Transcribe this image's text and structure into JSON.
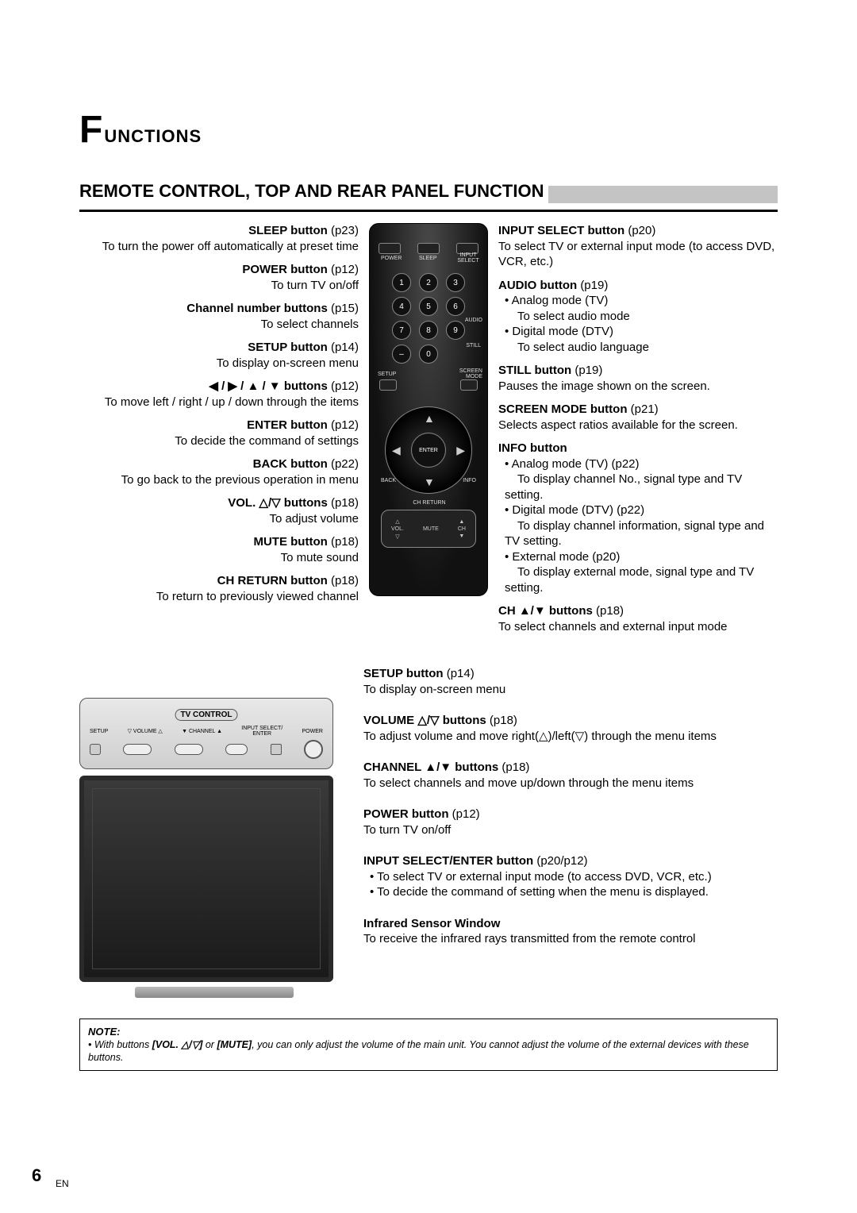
{
  "title": {
    "big": "F",
    "rest": "UNCTIONS"
  },
  "section_heading": "REMOTE CONTROL, TOP AND REAR PANEL FUNCTION",
  "left": [
    {
      "head": "SLEEP button",
      "pref": "(p23)",
      "body": "To turn the power off automatically at preset time"
    },
    {
      "head": "POWER button",
      "pref": "(p12)",
      "body": "To turn TV on/off"
    },
    {
      "head": "Channel number buttons",
      "pref": "(p15)",
      "body": "To select channels"
    },
    {
      "head": "SETUP button",
      "pref": "(p14)",
      "body": "To display on-screen menu"
    },
    {
      "head": "◀ / ▶ / ▲ / ▼ buttons",
      "pref": "(p12)",
      "body": "To move left / right / up / down through the items"
    },
    {
      "head": "ENTER button",
      "pref": "(p12)",
      "body": "To decide the command of settings"
    },
    {
      "head": "BACK button",
      "pref": "(p22)",
      "body": "To go back to the previous operation in menu"
    },
    {
      "head": "VOL. △/▽ buttons",
      "pref": "(p18)",
      "body": "To adjust volume"
    },
    {
      "head": "MUTE button",
      "pref": "(p18)",
      "body": "To mute sound"
    },
    {
      "head": "CH RETURN button",
      "pref": "(p18)",
      "body": "To return to previously viewed channel"
    }
  ],
  "right": [
    {
      "head": "INPUT SELECT button",
      "pref": "(p20)",
      "body": "To select TV or external input mode (to access DVD, VCR, etc.)"
    },
    {
      "head": "AUDIO button",
      "pref": "(p19)",
      "bullets": [
        "Analog mode (TV)\nTo select audio mode",
        "Digital mode (DTV)\nTo select audio language"
      ]
    },
    {
      "head": "STILL button",
      "pref": "(p19)",
      "body": "Pauses the image shown on the screen."
    },
    {
      "head": "SCREEN MODE button",
      "pref": "(p21)",
      "body": "Selects aspect ratios available for the screen."
    },
    {
      "head": "INFO button",
      "pref": "",
      "bullets": [
        "Analog mode (TV) (p22)\nTo display channel No., signal type and TV setting.",
        "Digital mode (DTV) (p22)\nTo display channel information, signal type and TV setting.",
        "External mode (p20)\nTo display external mode, signal type and TV setting."
      ]
    },
    {
      "head": "CH ▲/▼ buttons",
      "pref": "(p18)",
      "body": "To select channels and external input mode"
    }
  ],
  "bottom": [
    {
      "head": "SETUP button",
      "pref": "(p14)",
      "body": "To display on-screen menu"
    },
    {
      "head": "VOLUME △/▽ buttons",
      "pref": "(p18)",
      "body": "To adjust volume and move right(△)/left(▽) through the menu items"
    },
    {
      "head": "CHANNEL ▲/▼ buttons",
      "pref": "(p18)",
      "body": "To select channels and move up/down through the menu items"
    },
    {
      "head": "POWER button",
      "pref": "(p12)",
      "body": "To turn TV on/off"
    },
    {
      "head": "INPUT SELECT/ENTER button",
      "pref": "(p20/p12)",
      "bullets": [
        "To select TV or external input mode (to access DVD, VCR, etc.)",
        "To decide the command of setting when the menu is displayed."
      ]
    },
    {
      "head": "Infrared Sensor Window",
      "pref": "",
      "body": "To receive the infrared rays transmitted from the remote control"
    }
  ],
  "remote_labels": {
    "power": "POWER",
    "sleep": "SLEEP",
    "input": "INPUT SELECT",
    "audio": "AUDIO",
    "still": "STILL",
    "setup": "SETUP",
    "screen": "SCREEN MODE",
    "back": "BACK",
    "info": "INFO",
    "enter": "ENTER",
    "chreturn": "CH RETURN",
    "vol": "VOL.",
    "mute": "MUTE",
    "ch": "CH"
  },
  "tv_panel": {
    "label": "TV CONTROL",
    "setup": "SETUP",
    "volume": "VOLUME",
    "channel": "CHANNEL",
    "inputenter": "INPUT SELECT/\nENTER",
    "power": "POWER"
  },
  "note": {
    "title": "NOTE:",
    "body_pre": "With buttons ",
    "b1": "[VOL. △/▽]",
    "mid": " or ",
    "b2": "[MUTE]",
    "body_post": ", you can only adjust the volume of the main unit. You cannot adjust the volume of the external devices with these buttons."
  },
  "page_number": "6",
  "page_lang": "EN",
  "colors": {
    "gray_bar": "#c4c4c4",
    "text": "#000000",
    "remote_dark": "#111111",
    "panel_bg": "#e0e0e0"
  }
}
